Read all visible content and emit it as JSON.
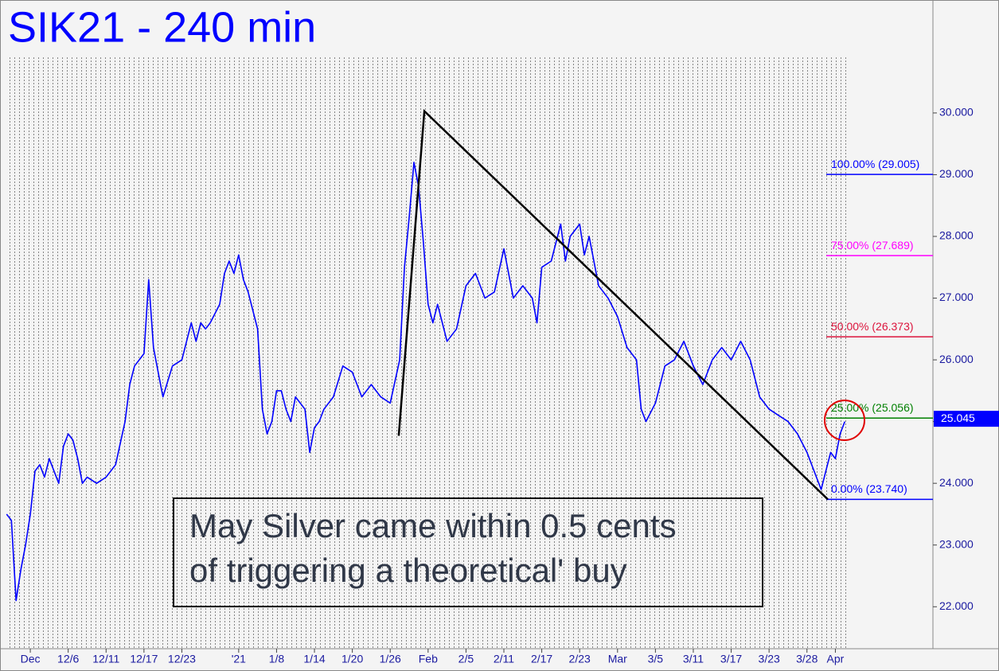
{
  "chart_data": {
    "type": "line",
    "title": "SIK21 - 240 min",
    "x": [
      -2.5,
      -2,
      -1.5,
      -1,
      -0.5,
      0,
      0.5,
      1,
      1.5,
      2,
      2.5,
      3,
      3.5,
      4,
      4.5,
      5,
      5.5,
      6,
      7,
      8,
      9,
      10,
      10.5,
      11,
      11.5,
      12,
      12.5,
      13,
      13.5,
      14,
      15,
      16,
      17,
      17.5,
      18,
      18.5,
      19,
      20,
      20.5,
      21,
      21.5,
      22,
      22.5,
      23,
      24,
      24.5,
      25,
      25.5,
      26,
      26.5,
      27,
      27.5,
      28,
      29,
      29.5,
      30,
      30.5,
      31,
      32,
      33,
      34,
      35,
      36,
      37,
      38,
      39,
      39.5,
      40,
      40.5,
      41,
      41.5,
      42,
      42.5,
      43,
      44,
      45,
      46,
      47,
      48,
      49,
      50,
      51,
      52,
      53,
      53.5,
      54,
      55,
      56,
      56.5,
      57,
      58,
      58.5,
      59,
      60,
      61,
      62,
      63,
      64,
      64.5,
      65,
      66,
      67,
      68,
      69,
      70,
      71,
      72,
      73,
      74,
      75,
      76,
      77,
      78,
      79,
      80,
      81,
      82,
      83,
      83.5,
      84,
      84.5,
      85,
      85.5,
      86
    ],
    "series": [
      {
        "name": "SIK21",
        "color": "#0000ff",
        "values": [
          23.5,
          23.4,
          22.1,
          22.6,
          23.0,
          23.5,
          24.2,
          24.3,
          24.1,
          24.4,
          24.2,
          24.0,
          24.6,
          24.8,
          24.7,
          24.4,
          24.0,
          24.1,
          24.0,
          24.1,
          24.3,
          25.0,
          25.6,
          25.9,
          26.0,
          26.1,
          27.3,
          26.2,
          25.8,
          25.4,
          25.9,
          26.0,
          26.6,
          26.3,
          26.6,
          26.5,
          26.6,
          26.9,
          27.4,
          27.6,
          27.4,
          27.7,
          27.3,
          27.1,
          26.5,
          25.2,
          24.8,
          25.0,
          25.5,
          25.5,
          25.2,
          25.0,
          25.4,
          25.2,
          24.5,
          24.9,
          25.0,
          25.2,
          25.4,
          25.9,
          25.8,
          25.4,
          25.6,
          25.4,
          25.3,
          26.0,
          27.5,
          28.3,
          29.2,
          28.8,
          27.9,
          26.9,
          26.6,
          26.9,
          26.3,
          26.5,
          27.2,
          27.4,
          27.0,
          27.1,
          27.8,
          27.0,
          27.2,
          27.0,
          26.6,
          27.5,
          27.6,
          28.2,
          27.6,
          28.0,
          28.2,
          27.7,
          28.0,
          27.2,
          27.0,
          26.7,
          26.2,
          26.0,
          25.2,
          25.0,
          25.3,
          25.9,
          26.0,
          26.3,
          25.9,
          25.6,
          26.0,
          26.2,
          26.0,
          26.3,
          26.0,
          25.4,
          25.2,
          25.1,
          25.0,
          24.8,
          24.5,
          24.1,
          23.9,
          24.2,
          24.5,
          24.4,
          24.8,
          25.0
        ]
      }
    ],
    "xlim": [
      -3.2,
      95.3
    ],
    "xticks": [
      {
        "value": 0,
        "label": "Dec"
      },
      {
        "value": 4,
        "label": "12/6"
      },
      {
        "value": 8,
        "label": "12/11"
      },
      {
        "value": 12,
        "label": "12/17"
      },
      {
        "value": 16,
        "label": "12/23"
      },
      {
        "value": 22,
        "label": "'21"
      },
      {
        "value": 26,
        "label": "1/8"
      },
      {
        "value": 30,
        "label": "1/14"
      },
      {
        "value": 34,
        "label": "1/20"
      },
      {
        "value": 38,
        "label": "1/26"
      },
      {
        "value": 42,
        "label": "Feb"
      },
      {
        "value": 46,
        "label": "2/5"
      },
      {
        "value": 50,
        "label": "2/11"
      },
      {
        "value": 54,
        "label": "2/17"
      },
      {
        "value": 58,
        "label": "2/23"
      },
      {
        "value": 62,
        "label": "Mar"
      },
      {
        "value": 66,
        "label": "3/5"
      },
      {
        "value": 70,
        "label": "3/11"
      },
      {
        "value": 74,
        "label": "3/17"
      },
      {
        "value": 78,
        "label": "3/23"
      },
      {
        "value": 82,
        "label": "3/28"
      },
      {
        "value": 85,
        "label": "Apr"
      }
    ],
    "ylim": [
      21.32,
      31.83
    ],
    "yticks": [
      {
        "value": 22,
        "label": "22.000"
      },
      {
        "value": 23,
        "label": "23.000"
      },
      {
        "value": 24,
        "label": "24.000"
      },
      {
        "value": 25,
        "label": "25.000"
      },
      {
        "value": 26,
        "label": "26.000"
      },
      {
        "value": 27,
        "label": "27.000"
      },
      {
        "value": 28,
        "label": "28.000"
      },
      {
        "value": 29,
        "label": "29.000"
      },
      {
        "value": 30,
        "label": "30.000"
      }
    ],
    "levels": [
      {
        "value": 29.005,
        "label": "100.00% (29.005)",
        "color": "#0000ff"
      },
      {
        "value": 27.689,
        "label": "75.00% (27.689)",
        "color": "#ff00ff"
      },
      {
        "value": 26.373,
        "label": "50.00% (26.373)",
        "color": "#dc143c"
      },
      {
        "value": 25.056,
        "label": "25.00% (25.056)",
        "color": "#008000"
      },
      {
        "value": 23.74,
        "label": "0.00% (23.740)",
        "color": "#0000ff"
      }
    ],
    "pattern": {
      "x": [
        38.9,
        41.6,
        84.2
      ],
      "y": [
        24.77,
        30.03,
        23.74
      ]
    },
    "last_value": {
      "value": 25.045,
      "label": "25.045"
    },
    "annotation": [
      "May Silver came within 0.5 cents",
      "of triggering a theoretical' buy"
    ]
  }
}
